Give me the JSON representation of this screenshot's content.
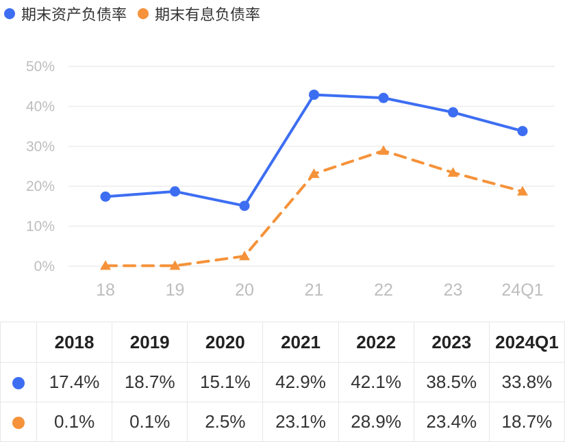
{
  "chart_data": {
    "type": "line",
    "categories": [
      "18",
      "19",
      "20",
      "21",
      "22",
      "23",
      "24Q1"
    ],
    "y_ticks": [
      "50%",
      "40%",
      "30%",
      "20%",
      "10%",
      "0%"
    ],
    "ylim": [
      0,
      50
    ],
    "grid": true,
    "legend_position": "top-left",
    "series": [
      {
        "name": "期末资产负债率",
        "values": [
          17.4,
          18.7,
          15.1,
          42.9,
          42.1,
          38.5,
          33.8
        ],
        "color": "#3d6ef2",
        "style": "solid",
        "marker": "circle"
      },
      {
        "name": "期末有息负债率",
        "values": [
          0.1,
          0.1,
          2.5,
          23.1,
          28.9,
          23.4,
          18.7
        ],
        "color": "#f5923a",
        "style": "dashed",
        "marker": "triangle"
      }
    ]
  },
  "table": {
    "columns": [
      "2018",
      "2019",
      "2020",
      "2021",
      "2022",
      "2023",
      "2024Q1"
    ],
    "rows": [
      {
        "color": "#3d6ef2",
        "cells": [
          "17.4%",
          "18.7%",
          "15.1%",
          "42.9%",
          "42.1%",
          "38.5%",
          "33.8%"
        ]
      },
      {
        "color": "#f5923a",
        "cells": [
          "0.1%",
          "0.1%",
          "2.5%",
          "23.1%",
          "28.9%",
          "23.4%",
          "18.7%"
        ]
      }
    ]
  }
}
